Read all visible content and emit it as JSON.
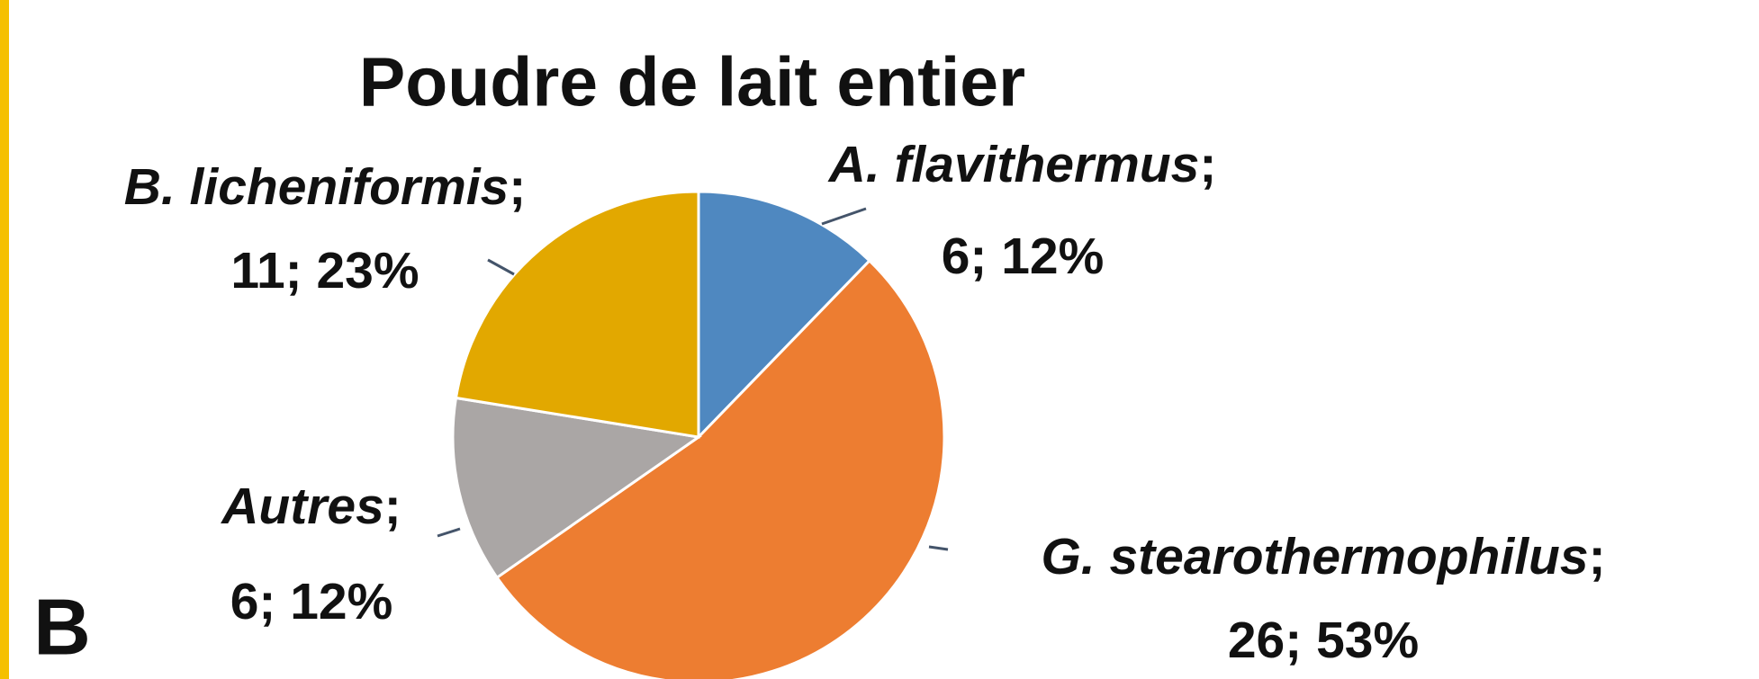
{
  "chart_data": {
    "type": "pie",
    "title": "Poudre de lait entier",
    "panel_label": "B",
    "label_separator": ";",
    "categories": [
      "A. flavithermus",
      "G. stearothermophilus",
      "Autres",
      "B. licheniformis"
    ],
    "values": [
      6,
      26,
      6,
      11
    ],
    "value_labels": [
      "6; 12%",
      "26; 53%",
      "6; 12%",
      "11; 23%"
    ],
    "colors": [
      "#4f88c0",
      "#ed7d31",
      "#aaa6a5",
      "#e2a800"
    ]
  }
}
